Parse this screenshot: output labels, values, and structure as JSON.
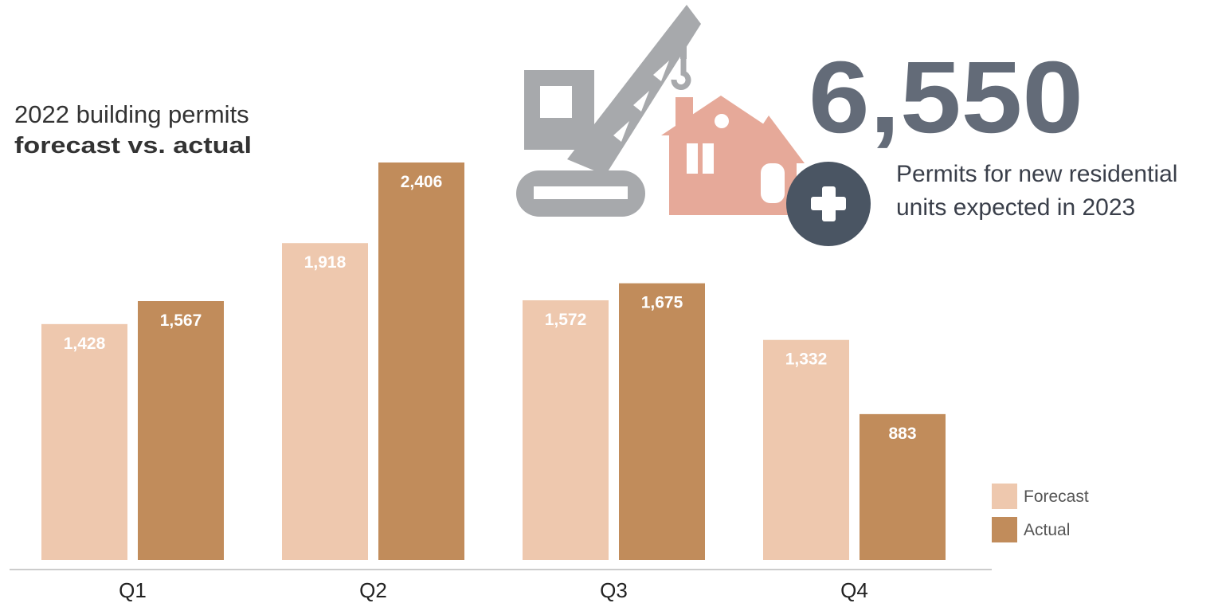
{
  "chart_data": {
    "type": "bar",
    "title": "2022 building permits",
    "subtitle": "forecast vs. actual",
    "categories": [
      "Q1",
      "Q2",
      "Q3",
      "Q4"
    ],
    "series": [
      {
        "name": "Forecast",
        "color": "#eec8ae",
        "values": [
          1428,
          1918,
          1572,
          1332
        ],
        "value_labels": [
          "1,428",
          "1,918",
          "1,572",
          "1,332"
        ]
      },
      {
        "name": "Actual",
        "color": "#c18c5b",
        "values": [
          1567,
          2406,
          1675,
          883
        ],
        "value_labels": [
          "1,567",
          "2,406",
          "1,675",
          "883"
        ]
      }
    ],
    "grid": false,
    "legend": "bottom-right",
    "callout": {
      "number": "6,550",
      "lines": [
        "Permits for new residential",
        "units expected in 2023"
      ]
    }
  }
}
